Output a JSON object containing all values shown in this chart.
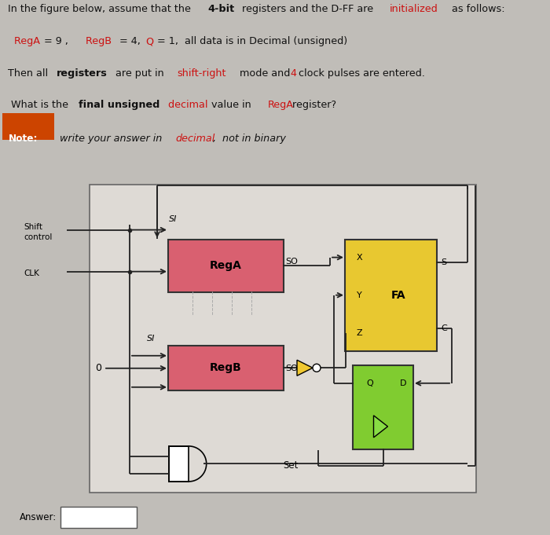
{
  "fig_bg": "#c0bdb8",
  "text_bg": "#d8d5d0",
  "diagram_bg": "#ccc9c4",
  "diagram_inner_bg": "#dedad5",
  "rega_color": "#d96070",
  "regb_color": "#d96070",
  "fa_color": "#e8c830",
  "dff_color": "#80cc30",
  "note_bg": "#cc4400",
  "wire_color": "#222222",
  "text_color": "#111111",
  "red_color": "#cc1111",
  "answer_box_color": "#ffffff",
  "labels": {
    "line1_pre": "In the figure below, assume that the ",
    "line1_bold": "4-bit",
    "line1_mid": " registers and the D-FF are ",
    "line1_red": "initialized",
    "line1_post": " as follows:",
    "rega_val": "RegA",
    "eq1": " = 9 ,",
    "regb_val": "RegB",
    "eq2": " = 4,",
    "q_val": " Q",
    "eq3": " = 1,",
    "rest": "  all data is in Decimal (unsigned)",
    "line3_pre": "Then all ",
    "line3_bold": "registers",
    "line3_mid": " are put in ",
    "line3_red": "shift-right",
    "line3_mid2": " mode and ",
    "line3_red2": "4",
    "line3_post": " clock pulses are entered.",
    "line4_pre": "What is the ",
    "line4_bold": "final unsigned",
    "line4_red": " decimal",
    "line4_mid": " value in  ",
    "line4_red2": "RegA",
    "line4_post": " register?",
    "note_pre": "Note:",
    "note_mid": " write your answer in ",
    "note_red": "decimal",
    "note_post": ",  not in binary",
    "SI": "SI",
    "SO": "SO",
    "rega": "RegA",
    "regb": "RegB",
    "FA": "FA",
    "X": "X",
    "Y": "Y",
    "Z": "Z",
    "S": "S",
    "C": "C",
    "Q": "Q",
    "D": "D",
    "shift_ctrl": "Shift\ncontrol",
    "CLK": "CLK",
    "zero": "0",
    "Set": "Set",
    "answer": "Answer:"
  }
}
